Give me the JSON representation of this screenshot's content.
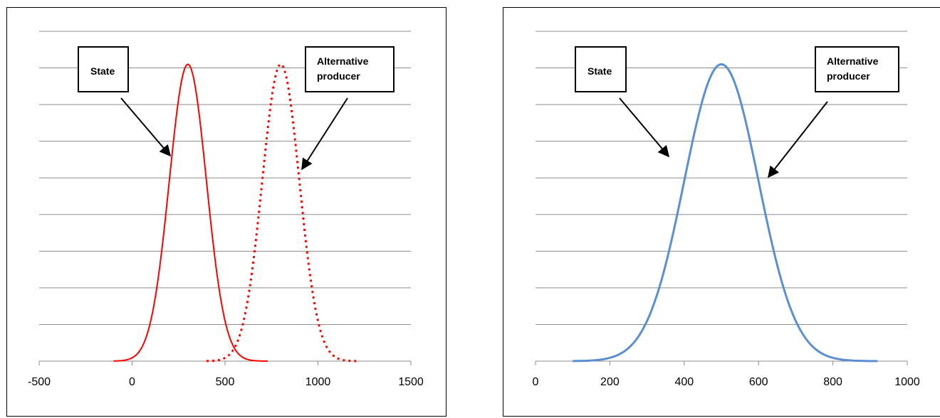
{
  "chart_data": [
    {
      "type": "line",
      "xlim": [
        -500,
        1500
      ],
      "ylim": [
        0,
        1
      ],
      "xticks": [
        "-500",
        "0",
        "500",
        "1000",
        "1500"
      ],
      "grid": true,
      "series": [
        {
          "mean": 300,
          "sd": 100,
          "x_range": [
            -100,
            730
          ],
          "peak": 0.9,
          "style": "solid",
          "color": "#ff0000"
        },
        {
          "mean": 800,
          "sd": 100,
          "x_range": [
            400,
            1210
          ],
          "peak": 0.9,
          "style": "dotted",
          "color": "#ff0000"
        }
      ],
      "annotations": [
        {
          "text": [
            "State"
          ]
        },
        {
          "text": [
            "Alternative",
            "producer"
          ]
        }
      ]
    },
    {
      "type": "line",
      "xlim": [
        0,
        1000
      ],
      "ylim": [
        0,
        1
      ],
      "xticks": [
        "0",
        "200",
        "400",
        "600",
        "800",
        "1000"
      ],
      "grid": true,
      "series": [
        {
          "mean": 500,
          "sd": 100,
          "x_range": [
            100,
            920
          ],
          "peak": 0.9,
          "style": "solid",
          "color": "#5b8fd1"
        }
      ],
      "annotations": [
        {
          "text": [
            "State"
          ]
        },
        {
          "text": [
            "Alternative",
            "producer"
          ]
        }
      ]
    }
  ]
}
